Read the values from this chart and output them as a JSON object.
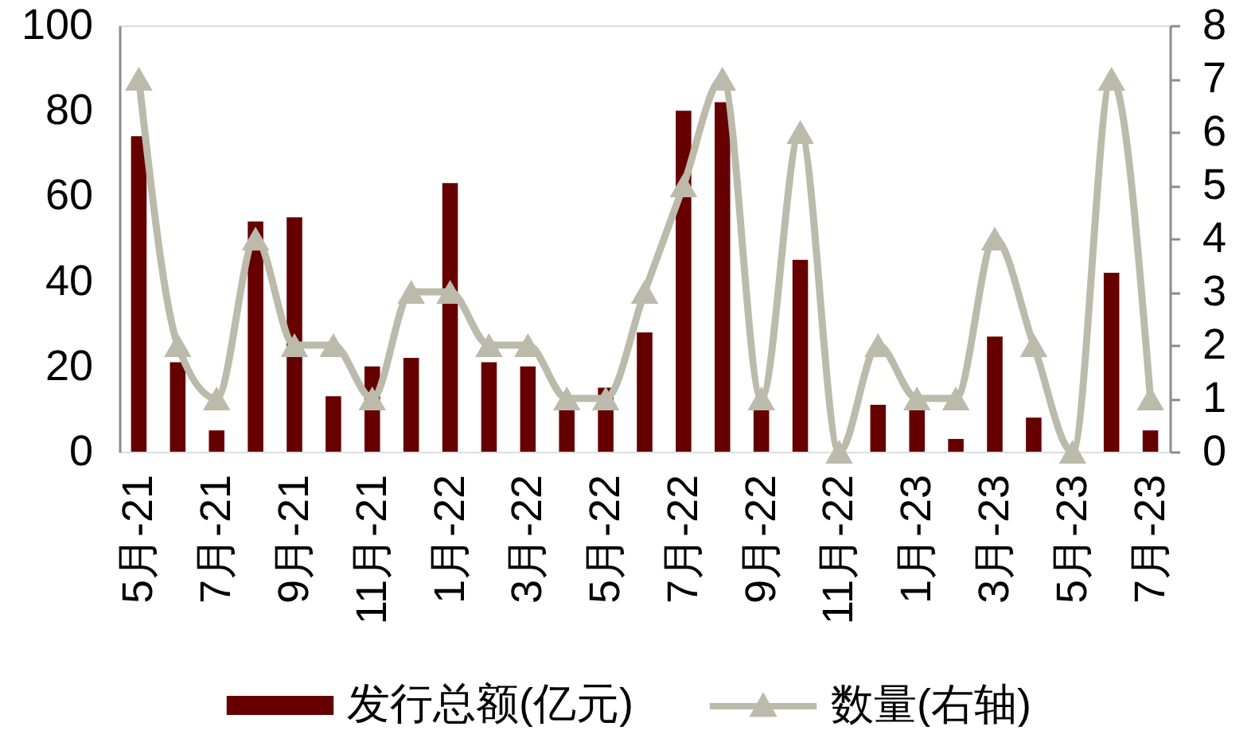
{
  "chart_data": {
    "type": "bar",
    "categories": [
      "5月-21",
      null,
      "7月-21",
      null,
      "9月-21",
      null,
      "11月-21",
      null,
      "1月-22",
      null,
      "3月-22",
      null,
      "5月-22",
      null,
      "7月-22",
      null,
      "9月-22",
      null,
      "11月-22",
      null,
      "1月-23",
      null,
      "3月-23",
      null,
      "5月-23",
      null,
      "7月-23"
    ],
    "series": [
      {
        "name": "发行总额(亿元)",
        "color": "#660000",
        "values": [
          74,
          21,
          5,
          54,
          55,
          13,
          20,
          22,
          63,
          21,
          20,
          10,
          15,
          28,
          80,
          82,
          10,
          45,
          0,
          11,
          10,
          3,
          27,
          8,
          0,
          42,
          5
        ]
      },
      {
        "name": "数量(右轴)",
        "type": "line",
        "axis": "y2",
        "color": "#bcbbab",
        "values": [
          7,
          2,
          1,
          4,
          2,
          2,
          1,
          3,
          3,
          2,
          2,
          1,
          1,
          3,
          5,
          7,
          1,
          6,
          0,
          2,
          1,
          1,
          4,
          2,
          0,
          7,
          1
        ]
      }
    ],
    "ylim": [
      0,
      100
    ],
    "yticks": [
      0,
      20,
      40,
      60,
      80,
      100
    ],
    "y2lim": [
      0,
      8
    ],
    "y2ticks": [
      0,
      1,
      2,
      3,
      4,
      5,
      6,
      7,
      8
    ],
    "marker": "triangle",
    "line_style": "solid",
    "grid": false,
    "legend": "bottom"
  }
}
